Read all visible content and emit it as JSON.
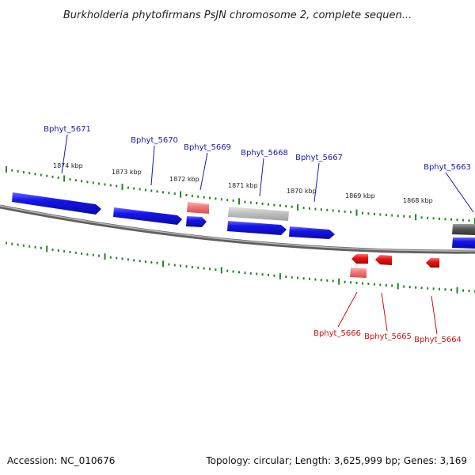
{
  "title": "Burkholderia phytofirmans PsJN chromosome 2, complete sequen...",
  "footer": {
    "accession": "Accession: NC_010676",
    "topology": "Topology: circular; Length: 3,625,999 bp; Genes: 3,169"
  },
  "colors": {
    "forward_gene": "#1010ee",
    "reverse_gene": "#ee1010",
    "pseudo_forward": "#c0c0c0",
    "pseudo_reverse": "#f08080",
    "backbone": "#808080",
    "tick": "#228822",
    "forward_label": "#1a1aaa",
    "reverse_label": "#cc1111"
  },
  "kbp_labels": [
    "1874 kbp",
    "1873 kbp",
    "1872 kbp",
    "1871 kbp",
    "1870 kbp",
    "1869 kbp",
    "1868 kbp"
  ],
  "forward_genes": [
    "Bphyt_5671",
    "Bphyt_5670",
    "Bphyt_5669",
    "Bphyt_5668",
    "Bphyt_5667",
    "Bphyt_5663"
  ],
  "reverse_genes": [
    "Bphyt_5666",
    "Bphyt_5665",
    "Bphyt_5664"
  ]
}
